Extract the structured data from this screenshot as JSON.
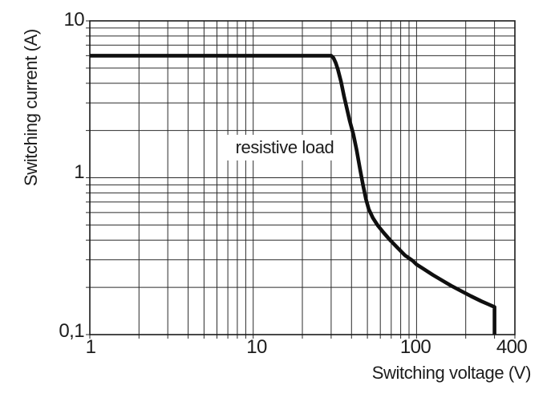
{
  "chart_data": {
    "type": "line",
    "title": "",
    "xlabel": "Switching voltage (V)",
    "ylabel": "Switching current (A)",
    "annotation": "resistive load",
    "x_scale": "log",
    "y_scale": "log",
    "xlim": [
      1,
      400
    ],
    "ylim": [
      0.1,
      10
    ],
    "grid": true,
    "legend_position": "none",
    "x_ticks": [
      {
        "value": 1,
        "label": "1"
      },
      {
        "value": 10,
        "label": "10"
      },
      {
        "value": 100,
        "label": "100"
      },
      {
        "value": 400,
        "label": "400"
      }
    ],
    "y_ticks": [
      {
        "value": 0.1,
        "label": "0,1"
      },
      {
        "value": 1,
        "label": "1"
      },
      {
        "value": 10,
        "label": "10"
      }
    ],
    "x_gridlines": [
      1,
      2,
      3,
      4,
      5,
      6,
      7,
      8,
      9,
      10,
      20,
      30,
      40,
      50,
      60,
      70,
      80,
      90,
      100,
      200,
      300,
      400
    ],
    "y_gridlines": [
      0.1,
      0.2,
      0.3,
      0.4,
      0.5,
      0.6,
      0.7,
      0.8,
      0.9,
      1,
      2,
      3,
      4,
      5,
      6,
      7,
      8,
      9,
      10
    ],
    "series": [
      {
        "name": "resistive load",
        "color": "#0f0f0f",
        "points": [
          [
            1,
            6
          ],
          [
            30,
            6
          ],
          [
            31,
            5.8
          ],
          [
            32,
            5.4
          ],
          [
            33,
            4.9
          ],
          [
            34.5,
            4.1
          ],
          [
            36,
            3.3
          ],
          [
            37.5,
            2.75
          ],
          [
            39,
            2.3
          ],
          [
            41,
            1.9
          ],
          [
            43,
            1.5
          ],
          [
            45,
            1.15
          ],
          [
            47,
            0.9
          ],
          [
            49,
            0.73
          ],
          [
            51,
            0.63
          ],
          [
            54,
            0.555
          ],
          [
            58,
            0.495
          ],
          [
            63,
            0.445
          ],
          [
            69,
            0.4
          ],
          [
            76,
            0.36
          ],
          [
            85,
            0.32
          ],
          [
            95,
            0.295
          ],
          [
            100,
            0.28
          ],
          [
            112,
            0.26
          ],
          [
            126,
            0.24
          ],
          [
            143,
            0.222
          ],
          [
            163,
            0.205
          ],
          [
            187,
            0.19
          ],
          [
            215,
            0.176
          ],
          [
            250,
            0.163
          ],
          [
            275,
            0.156
          ],
          [
            300,
            0.15
          ],
          [
            300,
            0.1
          ]
        ]
      }
    ],
    "colors": {
      "grid": "#2b2b2b",
      "border": "#1a1a1a",
      "curve": "#0f0f0f",
      "background": "#ffffff"
    }
  }
}
